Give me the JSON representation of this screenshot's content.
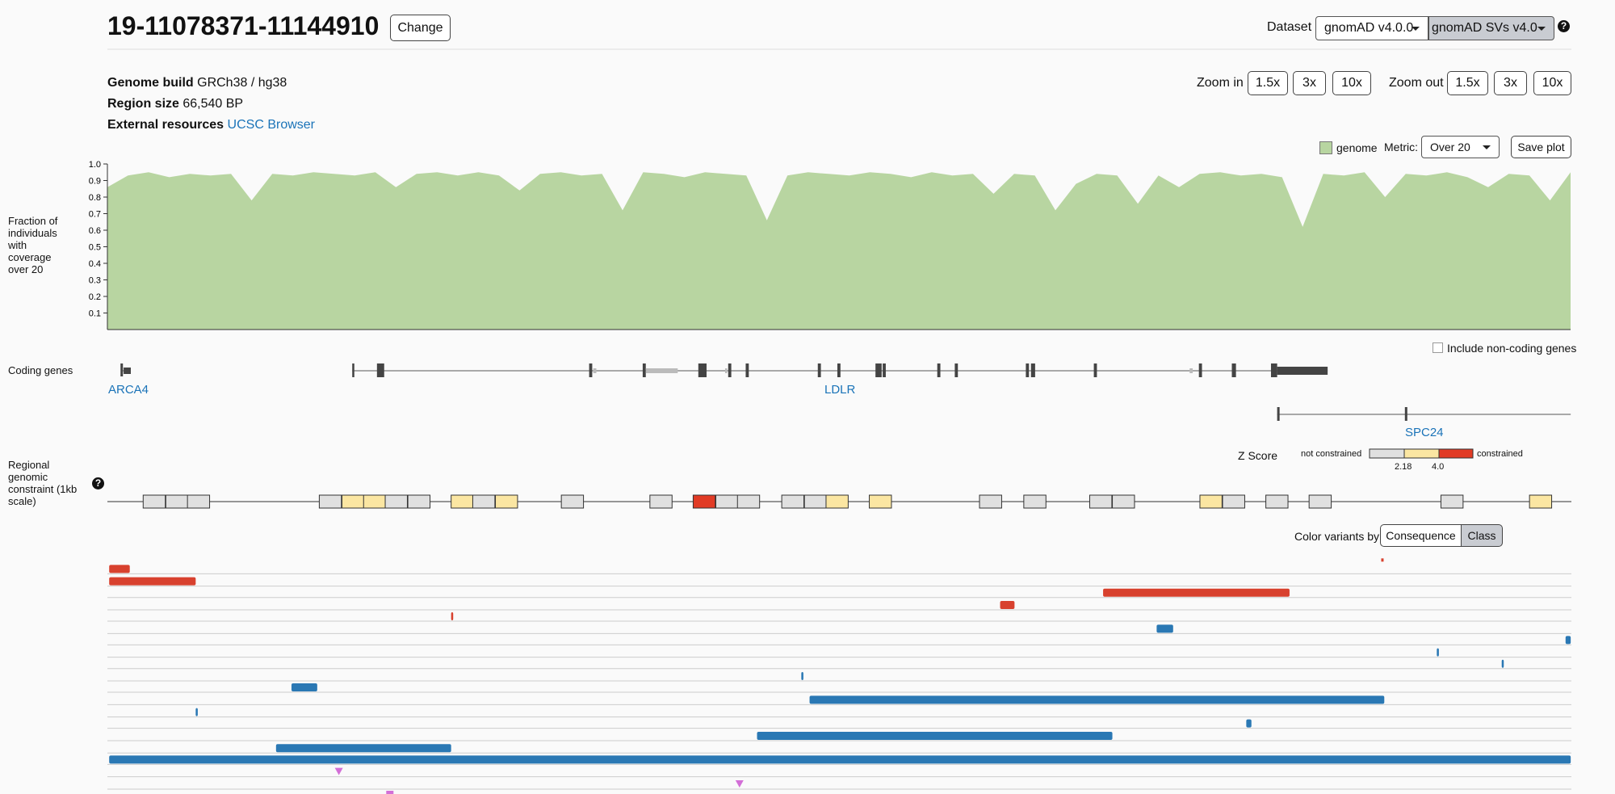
{
  "header": {
    "title": "19-11078371-11144910",
    "change_button": "Change",
    "dataset_label": "Dataset",
    "dataset_options": [
      "gnomAD v4.0.0",
      "gnomAD SVs v4.0"
    ]
  },
  "region_info": {
    "rows": [
      {
        "label": "Genome build",
        "value": "GRCh38 / hg38"
      },
      {
        "label": "Region size",
        "value": "66,540 BP"
      },
      {
        "label": "External resources",
        "value": "UCSC Browser"
      }
    ]
  },
  "zoom": {
    "zoom_in_label": "Zoom in",
    "zoom_in": [
      "1.5x",
      "3x",
      "10x"
    ],
    "zoom_out_label": "Zoom out",
    "zoom_out": [
      "1.5x",
      "3x",
      "10x"
    ]
  },
  "coverage_controls": {
    "legend": "genome",
    "metric_label": "Metric:",
    "metric_value": "Over 20",
    "save_button": "Save plot"
  },
  "chart_data": {
    "type": "area",
    "ylabel": "Fraction of individuals with coverage over 20",
    "color": "#b8d5a1",
    "ylim": [
      0,
      1
    ],
    "yticks": [
      0.1,
      0.2,
      0.3,
      0.4,
      0.5,
      0.6,
      0.7,
      0.8,
      0.9,
      {
        "value": 1,
        "label": "1.0"
      }
    ],
    "values": [
      0.86,
      0.93,
      0.95,
      0.92,
      0.94,
      0.93,
      0.94,
      0.78,
      0.94,
      0.93,
      0.95,
      0.94,
      0.93,
      0.95,
      0.86,
      0.94,
      0.95,
      0.93,
      0.95,
      0.93,
      0.84,
      0.94,
      0.95,
      0.93,
      0.94,
      0.72,
      0.95,
      0.94,
      0.92,
      0.95,
      0.94,
      0.93,
      0.66,
      0.93,
      0.95,
      0.94,
      0.93,
      0.95,
      0.94,
      0.92,
      0.95,
      0.93,
      0.94,
      0.82,
      0.94,
      0.93,
      0.72,
      0.88,
      0.94,
      0.93,
      0.76,
      0.93,
      0.86,
      0.94,
      0.95,
      0.93,
      0.94,
      0.92,
      0.62,
      0.94,
      0.93,
      0.95,
      0.8,
      0.94,
      0.93,
      0.95,
      0.92,
      0.86,
      0.94,
      0.93,
      0.78,
      0.95
    ]
  },
  "genes": {
    "track_label": "Coding genes",
    "checkbox_label": "Include non-coding genes",
    "names": [
      "ARCA4",
      "LDLR",
      "SPC24"
    ]
  },
  "constraint": {
    "track_label": "Regional genomic constraint (1kb scale)",
    "legend_title": "Z Score",
    "low_label": "not constrained",
    "high_label": "constrained",
    "thresholds": [
      "2.18",
      "4.0"
    ]
  },
  "variants": {
    "color_by_label": "Color variants by",
    "options": [
      "Consequence",
      "Class"
    ]
  }
}
